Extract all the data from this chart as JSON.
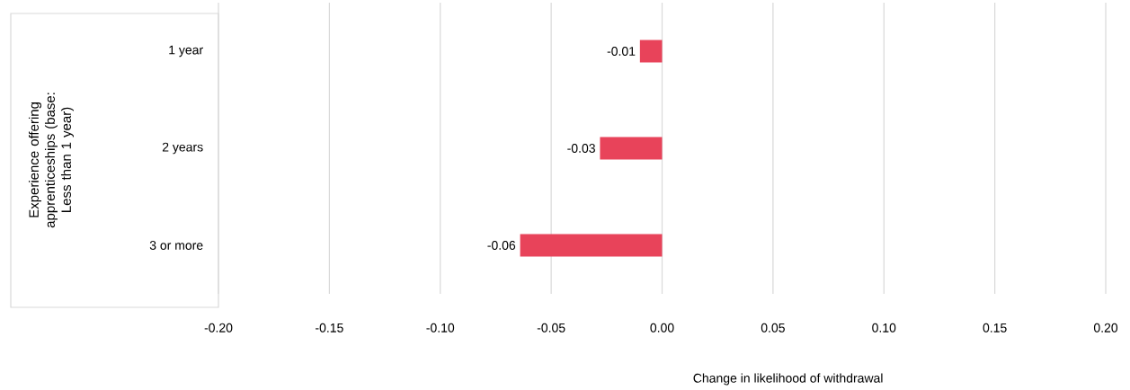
{
  "chart_data": {
    "type": "bar",
    "orientation": "horizontal",
    "categories": [
      "1 year",
      "2 years",
      "3 or more"
    ],
    "values": [
      -0.01,
      -0.028,
      -0.064
    ],
    "value_labels": [
      "-0.01",
      "-0.03",
      "-0.06"
    ],
    "color": "#e8435a",
    "xlim": [
      -0.2,
      0.2
    ],
    "xticks": [
      {
        "value": -0.2,
        "label": "-0.20"
      },
      {
        "value": -0.15,
        "label": "-0.15"
      },
      {
        "value": -0.1,
        "label": "-0.10"
      },
      {
        "value": -0.05,
        "label": "-0.05"
      },
      {
        "value": 0,
        "label": "0.00"
      },
      {
        "value": 0.05,
        "label": "0.05"
      },
      {
        "value": 0.1,
        "label": "0.10"
      },
      {
        "value": 0.15,
        "label": "0.15"
      },
      {
        "value": 0.2,
        "label": "0.20"
      }
    ],
    "xlabel": "Change in likelihood of withdrawal",
    "annotations": [
      "Experience offering apprenticeships (base: Less than 1 year)"
    ],
    "grid": "x"
  }
}
